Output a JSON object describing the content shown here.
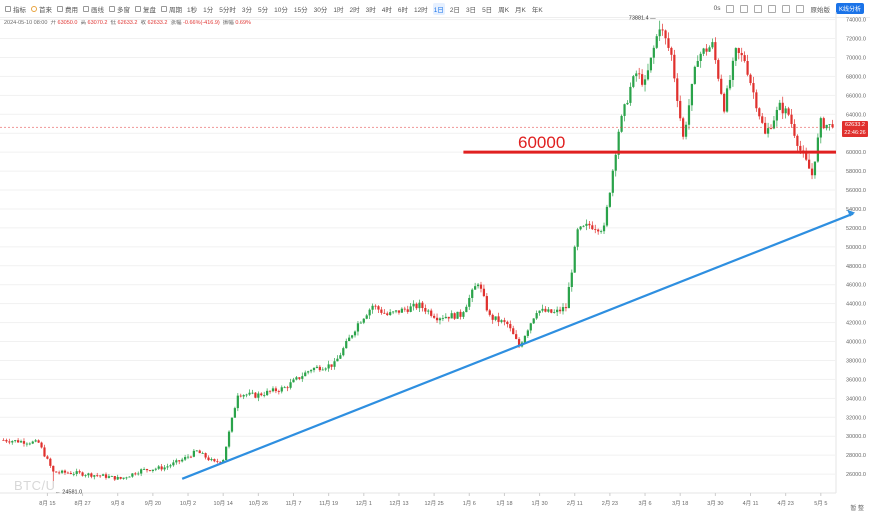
{
  "toolbar": {
    "tools": [
      {
        "label": "指标",
        "icon": "indicator-icon"
      },
      {
        "label": "首来",
        "icon": "sun-icon"
      },
      {
        "label": "费用",
        "icon": "coin-icon"
      },
      {
        "label": "画线",
        "icon": "draw-icon"
      },
      {
        "label": "多窗",
        "icon": "window-icon"
      },
      {
        "label": "复盘",
        "icon": "replay-icon"
      },
      {
        "label": "周期",
        "icon": "chevron-down-icon"
      }
    ],
    "periods": [
      "1秒",
      "1分",
      "5分时",
      "3分",
      "5分",
      "10分",
      "15分",
      "30分",
      "1时",
      "2时",
      "3时",
      "4时",
      "6时",
      "12时",
      "1日",
      "2日",
      "3日",
      "5日",
      "周K",
      "月K",
      "年K"
    ],
    "active_period": "1日",
    "right_tools": [
      "0s",
      "expand-icon",
      "camera-icon",
      "settings-icon",
      "fullscreen-icon",
      "moon-icon",
      "layout-icon"
    ],
    "right_label": "原始版",
    "kline_button": "K线分析"
  },
  "ohlc": {
    "date": "2024-05-10 08:00",
    "open_label": "开",
    "open": "63050.0",
    "high_label": "高",
    "high": "63070.2",
    "low_label": "低",
    "low": "62633.2",
    "close_label": "收",
    "close": "62633.2",
    "change_label": "涨幅",
    "change": "-0.66%(-416.9)",
    "amp_label": "振幅",
    "amp": "0.69%"
  },
  "price_tag": {
    "price": "62633.2",
    "countdown": "22:46:26"
  },
  "level_label": "60000",
  "watermark": "BTC/U",
  "footer_note": "暂 整",
  "chart_data": {
    "type": "candlestick",
    "symbol": "BTC/USDT",
    "x_tick_labels": [
      "8月 15",
      "8月 27",
      "9月 8",
      "9月 20",
      "10月 2",
      "10月 14",
      "10月 26",
      "11月 7",
      "11月 19",
      "12月 1",
      "12月 13",
      "12月 25",
      "1月 6",
      "1月 18",
      "1月 30",
      "2月 11",
      "2月 23",
      "3月 6",
      "3月 18",
      "3月 30",
      "4月 11",
      "4月 23",
      "5月 5"
    ],
    "x_tick_index": [
      15,
      27,
      39,
      51,
      63,
      75,
      87,
      99,
      111,
      123,
      135,
      147,
      159,
      171,
      183,
      195,
      207,
      219,
      231,
      243,
      255,
      267,
      279
    ],
    "y_ticks": [
      26000,
      28000,
      30000,
      32000,
      34000,
      36000,
      38000,
      40000,
      42000,
      44000,
      46000,
      48000,
      50000,
      52000,
      54000,
      56000,
      58000,
      60000,
      62000,
      64000,
      66000,
      68000,
      70000,
      72000,
      74000
    ],
    "ylim": [
      24000,
      74800
    ],
    "n_candles": 284,
    "price_path_anchors": [
      [
        0,
        29600
      ],
      [
        12,
        29300
      ],
      [
        17,
        26200
      ],
      [
        25,
        26100
      ],
      [
        34,
        25800
      ],
      [
        40,
        25500
      ],
      [
        47,
        26400
      ],
      [
        55,
        26700
      ],
      [
        61,
        27500
      ],
      [
        66,
        28400
      ],
      [
        72,
        27200
      ],
      [
        75,
        27600
      ],
      [
        80,
        34500
      ],
      [
        86,
        34300
      ],
      [
        96,
        35100
      ],
      [
        105,
        37100
      ],
      [
        113,
        37600
      ],
      [
        121,
        41900
      ],
      [
        126,
        43800
      ],
      [
        131,
        42800
      ],
      [
        137,
        43400
      ],
      [
        142,
        43800
      ],
      [
        148,
        42600
      ],
      [
        156,
        42800
      ],
      [
        162,
        46300
      ],
      [
        166,
        42600
      ],
      [
        172,
        41800
      ],
      [
        176,
        39500
      ],
      [
        182,
        43300
      ],
      [
        188,
        43000
      ],
      [
        192,
        43600
      ],
      [
        196,
        51600
      ],
      [
        200,
        52300
      ],
      [
        205,
        51900
      ],
      [
        210,
        62300
      ],
      [
        214,
        66800
      ],
      [
        216,
        68300
      ],
      [
        219,
        67200
      ],
      [
        224,
        73400
      ],
      [
        228,
        70200
      ],
      [
        232,
        61500
      ],
      [
        237,
        70200
      ],
      [
        242,
        71300
      ],
      [
        246,
        64800
      ],
      [
        250,
        70500
      ],
      [
        253,
        69800
      ],
      [
        256,
        66300
      ],
      [
        260,
        61800
      ],
      [
        265,
        64800
      ],
      [
        268,
        64000
      ],
      [
        272,
        60200
      ],
      [
        276,
        57600
      ],
      [
        279,
        63100
      ],
      [
        283,
        62633
      ]
    ],
    "high_annotation": {
      "label": "73881.4",
      "value": 73881.4,
      "index": 224
    },
    "low_annotation": {
      "label": "24581.0",
      "value": 24581.0,
      "index": 17
    },
    "last_price": 62633.2,
    "horizontal_line": {
      "value": 60000,
      "label": "60000",
      "color": "#e02020"
    },
    "trend_line": {
      "points": [
        [
          61,
          25500
        ],
        [
          290,
          53500
        ]
      ],
      "color": "#2e8fe0"
    },
    "up_color": "#2aa34a",
    "down_color": "#e0312e"
  }
}
